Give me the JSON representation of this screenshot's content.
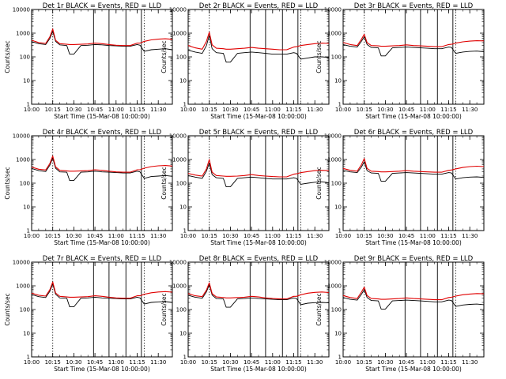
{
  "figure": {
    "background": "#ffffff"
  },
  "series_colors": {
    "events": "#000000",
    "lld": "#e00000"
  },
  "chart_data": [
    {
      "type": "line",
      "title": "Det 1r BLACK = Events, RED = LLD",
      "xlabel": "Start Time (15-Mar-08 10:00:00)",
      "ylabel": "Counts/sec",
      "yscale": "log",
      "ylim": [
        1,
        10000
      ],
      "xlim": [
        "10:00",
        "11:40"
      ],
      "xticks": [
        "10:00",
        "10:15",
        "10:30",
        "10:45",
        "11:00",
        "11:15",
        "11:30"
      ],
      "yticks": [
        "1",
        "10",
        "100",
        "1000",
        "10000"
      ],
      "dotted_lines_x": [
        "10:15",
        "11:20"
      ],
      "solid_lines_x": [
        "10:44",
        "10:55",
        "11:07",
        "11:18"
      ],
      "x": [
        "10:00",
        "10:05",
        "10:10",
        "10:13",
        "10:15",
        "10:17",
        "10:20",
        "10:25",
        "10:27",
        "10:30",
        "10:35",
        "10:40",
        "10:45",
        "10:50",
        "10:55",
        "11:00",
        "11:05",
        "11:10",
        "11:15",
        "11:17",
        "11:20",
        "11:25",
        "11:30",
        "11:35",
        "11:40"
      ],
      "series": [
        {
          "values": [
            440,
            360,
            330,
            600,
            1200,
            450,
            320,
            300,
            130,
            130,
            300,
            310,
            330,
            320,
            300,
            290,
            280,
            280,
            330,
            310,
            170,
            200,
            210,
            220,
            200
          ]
        },
        {
          "values": [
            500,
            400,
            370,
            700,
            1500,
            500,
            360,
            340,
            330,
            330,
            340,
            350,
            380,
            360,
            330,
            310,
            300,
            300,
            380,
            380,
            450,
            520,
            560,
            580,
            550
          ]
        }
      ]
    },
    {
      "type": "line",
      "title": "Det 2r BLACK = Events, RED = LLD",
      "xlabel": "Start Time (15-Mar-08 10:00:00)",
      "ylabel": "Counts/sec",
      "yscale": "log",
      "ylim": [
        1,
        10000
      ],
      "xlim": [
        "10:00",
        "11:40"
      ],
      "xticks": [
        "10:00",
        "10:15",
        "10:30",
        "10:45",
        "11:00",
        "11:15",
        "11:30"
      ],
      "yticks": [
        "1",
        "10",
        "100",
        "1000",
        "10000"
      ],
      "dotted_lines_x": [
        "10:15",
        "11:20"
      ],
      "solid_lines_x": [
        "10:44",
        "10:55",
        "11:07",
        "11:18"
      ],
      "x": [
        "10:00",
        "10:05",
        "10:10",
        "10:13",
        "10:15",
        "10:17",
        "10:20",
        "10:25",
        "10:27",
        "10:30",
        "10:35",
        "10:40",
        "10:45",
        "10:50",
        "10:55",
        "11:00",
        "11:05",
        "11:10",
        "11:15",
        "11:17",
        "11:20",
        "11:25",
        "11:30",
        "11:35",
        "11:40"
      ],
      "series": [
        {
          "values": [
            190,
            160,
            140,
            300,
            800,
            220,
            150,
            140,
            60,
            60,
            140,
            150,
            160,
            150,
            140,
            130,
            130,
            130,
            150,
            140,
            80,
            90,
            100,
            100,
            95
          ]
        },
        {
          "values": [
            300,
            240,
            210,
            450,
            1100,
            320,
            230,
            220,
            210,
            210,
            220,
            230,
            250,
            230,
            220,
            210,
            200,
            200,
            260,
            270,
            300,
            330,
            360,
            380,
            370
          ]
        }
      ]
    },
    {
      "type": "line",
      "title": "Det 3r BLACK = Events, RED = LLD",
      "xlabel": "Start Time (15-Mar-08 10:00:00)",
      "ylabel": "Counts/sec",
      "yscale": "log",
      "ylim": [
        1,
        10000
      ],
      "xlim": [
        "10:00",
        "11:40"
      ],
      "xticks": [
        "10:00",
        "10:15",
        "10:30",
        "10:45",
        "11:00",
        "11:15",
        "11:30"
      ],
      "yticks": [
        "1",
        "10",
        "100",
        "1000",
        "10000"
      ],
      "dotted_lines_x": [
        "10:15",
        "11:20"
      ],
      "solid_lines_x": [
        "10:44",
        "10:55",
        "11:07",
        "11:18"
      ],
      "x": [
        "10:00",
        "10:05",
        "10:10",
        "10:13",
        "10:15",
        "10:17",
        "10:20",
        "10:25",
        "10:27",
        "10:30",
        "10:35",
        "10:40",
        "10:45",
        "10:50",
        "10:55",
        "11:00",
        "11:05",
        "11:10",
        "11:15",
        "11:17",
        "11:20",
        "11:25",
        "11:30",
        "11:35",
        "11:40"
      ],
      "series": [
        {
          "values": [
            330,
            280,
            260,
            450,
            700,
            330,
            250,
            240,
            110,
            110,
            240,
            250,
            260,
            250,
            240,
            230,
            220,
            220,
            260,
            250,
            140,
            160,
            170,
            175,
            165
          ]
        },
        {
          "values": [
            400,
            330,
            300,
            550,
            900,
            400,
            300,
            290,
            280,
            280,
            290,
            300,
            320,
            300,
            290,
            280,
            270,
            270,
            330,
            340,
            380,
            430,
            460,
            480,
            470
          ]
        }
      ]
    },
    {
      "type": "line",
      "title": "Det 4r BLACK = Events, RED = LLD",
      "xlabel": "Start Time (15-Mar-08 10:00:00)",
      "ylabel": "Counts/sec",
      "yscale": "log",
      "ylim": [
        1,
        10000
      ],
      "xlim": [
        "10:00",
        "11:40"
      ],
      "xticks": [
        "10:00",
        "10:15",
        "10:30",
        "10:45",
        "11:00",
        "11:15",
        "11:30"
      ],
      "yticks": [
        "1",
        "10",
        "100",
        "1000",
        "10000"
      ],
      "dotted_lines_x": [
        "10:15",
        "11:20"
      ],
      "solid_lines_x": [
        "10:44",
        "10:55",
        "11:07",
        "11:18"
      ],
      "x": [
        "10:00",
        "10:05",
        "10:10",
        "10:13",
        "10:15",
        "10:17",
        "10:20",
        "10:25",
        "10:27",
        "10:30",
        "10:35",
        "10:40",
        "10:45",
        "10:50",
        "10:55",
        "11:00",
        "11:05",
        "11:10",
        "11:15",
        "11:17",
        "11:20",
        "11:25",
        "11:30",
        "11:35",
        "11:40"
      ],
      "series": [
        {
          "values": [
            420,
            340,
            310,
            580,
            1150,
            430,
            300,
            290,
            130,
            130,
            290,
            300,
            320,
            300,
            290,
            280,
            270,
            270,
            320,
            300,
            160,
            190,
            200,
            210,
            195
          ]
        },
        {
          "values": [
            480,
            390,
            360,
            680,
            1400,
            490,
            350,
            330,
            320,
            320,
            330,
            340,
            370,
            350,
            320,
            300,
            290,
            290,
            370,
            370,
            430,
            500,
            540,
            560,
            530
          ]
        }
      ]
    },
    {
      "type": "line",
      "title": "Det 5r BLACK = Events, RED = LLD",
      "xlabel": "Start Time (15-Mar-08 10:00:00)",
      "ylabel": "Counts/sec",
      "yscale": "log",
      "ylim": [
        1,
        10000
      ],
      "xlim": [
        "10:00",
        "11:40"
      ],
      "xticks": [
        "10:00",
        "10:15",
        "10:30",
        "10:45",
        "11:00",
        "11:15",
        "11:30"
      ],
      "yticks": [
        "1",
        "10",
        "100",
        "1000",
        "10000"
      ],
      "dotted_lines_x": [
        "10:15",
        "11:20"
      ],
      "solid_lines_x": [
        "10:44",
        "10:55",
        "11:07",
        "11:18"
      ],
      "x": [
        "10:00",
        "10:05",
        "10:10",
        "10:13",
        "10:15",
        "10:17",
        "10:20",
        "10:25",
        "10:27",
        "10:30",
        "10:35",
        "10:40",
        "10:45",
        "10:50",
        "10:55",
        "11:00",
        "11:05",
        "11:10",
        "11:15",
        "11:17",
        "11:20",
        "11:25",
        "11:30",
        "11:35",
        "11:40"
      ],
      "series": [
        {
          "values": [
            210,
            180,
            160,
            320,
            700,
            230,
            170,
            160,
            70,
            70,
            160,
            170,
            180,
            170,
            160,
            150,
            150,
            150,
            170,
            160,
            90,
            100,
            110,
            115,
            105
          ]
        },
        {
          "values": [
            260,
            220,
            200,
            400,
            1000,
            290,
            210,
            200,
            195,
            195,
            200,
            210,
            230,
            210,
            200,
            190,
            185,
            185,
            240,
            250,
            280,
            310,
            340,
            350,
            340
          ]
        }
      ]
    },
    {
      "type": "line",
      "title": "Det 6r BLACK = Events, RED = LLD",
      "xlabel": "Start Time (15-Mar-08 10:00:00)",
      "ylabel": "Counts/sec",
      "yscale": "log",
      "ylim": [
        1,
        10000
      ],
      "xlim": [
        "10:00",
        "11:40"
      ],
      "xticks": [
        "10:00",
        "10:15",
        "10:30",
        "10:45",
        "11:00",
        "11:15",
        "11:30"
      ],
      "yticks": [
        "1",
        "10",
        "100",
        "1000",
        "10000"
      ],
      "dotted_lines_x": [
        "10:15",
        "11:20"
      ],
      "solid_lines_x": [
        "10:44",
        "10:55",
        "11:07",
        "11:18"
      ],
      "x": [
        "10:00",
        "10:05",
        "10:10",
        "10:13",
        "10:15",
        "10:17",
        "10:20",
        "10:25",
        "10:27",
        "10:30",
        "10:35",
        "10:40",
        "10:45",
        "10:50",
        "10:55",
        "11:00",
        "11:05",
        "11:10",
        "11:15",
        "11:17",
        "11:20",
        "11:25",
        "11:30",
        "11:35",
        "11:40"
      ],
      "series": [
        {
          "values": [
            350,
            300,
            280,
            480,
            800,
            340,
            270,
            260,
            120,
            120,
            260,
            270,
            280,
            270,
            260,
            250,
            240,
            240,
            280,
            270,
            150,
            170,
            180,
            185,
            175
          ]
        },
        {
          "values": [
            420,
            350,
            320,
            600,
            1100,
            420,
            320,
            310,
            300,
            300,
            310,
            320,
            340,
            320,
            310,
            300,
            290,
            290,
            350,
            360,
            400,
            460,
            500,
            520,
            500
          ]
        }
      ]
    },
    {
      "type": "line",
      "title": "Det 7r BLACK = Events, RED = LLD",
      "xlabel": "Start Time (15-Mar-08 10:00:00)",
      "ylabel": "Counts/sec",
      "yscale": "log",
      "ylim": [
        1,
        10000
      ],
      "xlim": [
        "10:00",
        "11:40"
      ],
      "xticks": [
        "10:00",
        "10:15",
        "10:30",
        "10:45",
        "11:00",
        "11:15",
        "11:30"
      ],
      "yticks": [
        "1",
        "10",
        "100",
        "1000",
        "10000"
      ],
      "dotted_lines_x": [
        "10:15",
        "11:20"
      ],
      "solid_lines_x": [
        "10:44",
        "10:55",
        "11:07",
        "11:18"
      ],
      "x": [
        "10:00",
        "10:05",
        "10:10",
        "10:13",
        "10:15",
        "10:17",
        "10:20",
        "10:25",
        "10:27",
        "10:30",
        "10:35",
        "10:40",
        "10:45",
        "10:50",
        "10:55",
        "11:00",
        "11:05",
        "11:10",
        "11:15",
        "11:17",
        "11:20",
        "11:25",
        "11:30",
        "11:35",
        "11:40"
      ],
      "series": [
        {
          "values": [
            430,
            350,
            320,
            590,
            1200,
            440,
            310,
            300,
            130,
            130,
            300,
            310,
            330,
            310,
            300,
            290,
            280,
            280,
            330,
            310,
            170,
            200,
            210,
            215,
            200
          ]
        },
        {
          "values": [
            490,
            400,
            370,
            690,
            1450,
            500,
            360,
            340,
            330,
            330,
            340,
            350,
            380,
            360,
            330,
            310,
            300,
            300,
            380,
            380,
            440,
            510,
            550,
            570,
            540
          ]
        }
      ]
    },
    {
      "type": "line",
      "title": "Det 8r BLACK = Events, RED = LLD",
      "xlabel": "Start Time (15-Mar-08 10:00:00)",
      "ylabel": "Counts/sec",
      "yscale": "log",
      "ylim": [
        1,
        10000
      ],
      "xlim": [
        "10:00",
        "11:40"
      ],
      "xticks": [
        "10:00",
        "10:15",
        "10:30",
        "10:45",
        "11:00",
        "11:15",
        "11:30"
      ],
      "yticks": [
        "1",
        "10",
        "100",
        "1000",
        "10000"
      ],
      "dotted_lines_x": [
        "10:15",
        "11:20"
      ],
      "solid_lines_x": [
        "10:44",
        "10:55",
        "11:07",
        "11:18"
      ],
      "x": [
        "10:00",
        "10:05",
        "10:10",
        "10:13",
        "10:15",
        "10:17",
        "10:20",
        "10:25",
        "10:27",
        "10:30",
        "10:35",
        "10:40",
        "10:45",
        "10:50",
        "10:55",
        "11:00",
        "11:05",
        "11:10",
        "11:15",
        "11:17",
        "11:20",
        "11:25",
        "11:30",
        "11:35",
        "11:40"
      ],
      "series": [
        {
          "values": [
            400,
            330,
            300,
            560,
            1100,
            410,
            290,
            280,
            125,
            125,
            280,
            290,
            310,
            290,
            280,
            270,
            260,
            260,
            310,
            290,
            160,
            185,
            195,
            200,
            190
          ]
        },
        {
          "values": [
            470,
            380,
            350,
            660,
            1350,
            470,
            340,
            320,
            310,
            310,
            320,
            330,
            360,
            340,
            310,
            290,
            280,
            280,
            360,
            360,
            420,
            490,
            530,
            550,
            520
          ]
        }
      ]
    },
    {
      "type": "line",
      "title": "Det 9r BLACK = Events, RED = LLD",
      "xlabel": "Start Time (15-Mar-08 10:00:00)",
      "ylabel": "Counts/sec",
      "yscale": "log",
      "ylim": [
        1,
        10000
      ],
      "xlim": [
        "10:00",
        "11:40"
      ],
      "xticks": [
        "10:00",
        "10:15",
        "10:30",
        "10:45",
        "11:00",
        "11:15",
        "11:30"
      ],
      "yticks": [
        "1",
        "10",
        "100",
        "1000",
        "10000"
      ],
      "dotted_lines_x": [
        "10:15",
        "11:20"
      ],
      "solid_lines_x": [
        "10:44",
        "10:55",
        "11:07",
        "11:18"
      ],
      "x": [
        "10:00",
        "10:05",
        "10:10",
        "10:13",
        "10:15",
        "10:17",
        "10:20",
        "10:25",
        "10:27",
        "10:30",
        "10:35",
        "10:40",
        "10:45",
        "10:50",
        "10:55",
        "11:00",
        "11:05",
        "11:10",
        "11:15",
        "11:17",
        "11:20",
        "11:25",
        "11:30",
        "11:35",
        "11:40"
      ],
      "series": [
        {
          "values": [
            320,
            270,
            250,
            440,
            680,
            320,
            240,
            230,
            105,
            105,
            230,
            240,
            250,
            240,
            230,
            220,
            210,
            210,
            250,
            240,
            135,
            155,
            165,
            170,
            160
          ]
        },
        {
          "values": [
            390,
            320,
            290,
            540,
            880,
            390,
            290,
            280,
            270,
            270,
            280,
            290,
            310,
            290,
            280,
            270,
            260,
            260,
            320,
            330,
            370,
            420,
            450,
            470,
            460
          ]
        }
      ]
    }
  ]
}
